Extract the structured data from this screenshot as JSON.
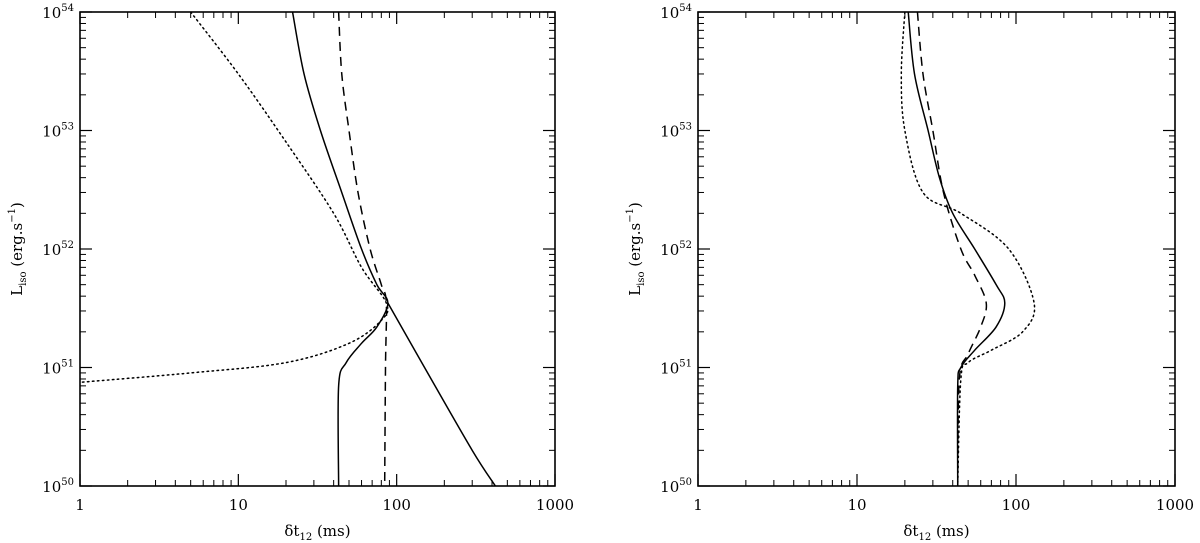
{
  "chart_data": [
    {
      "type": "line",
      "x_scale": "log",
      "y_scale": "log",
      "xlim": [
        1,
        1000
      ],
      "ylim": [
        1e+50,
        1e+54
      ],
      "x_ticks": [
        {
          "value": 1,
          "label": "1"
        },
        {
          "value": 10,
          "label": "10"
        },
        {
          "value": 100,
          "label": "100"
        },
        {
          "value": 1000,
          "label": "1000"
        }
      ],
      "y_ticks": [
        {
          "value": 1e+50,
          "base": "10",
          "exp": "50"
        },
        {
          "value": 1e+51,
          "base": "10",
          "exp": "51"
        },
        {
          "value": 1e+52,
          "base": "10",
          "exp": "52"
        },
        {
          "value": 1e+53,
          "base": "10",
          "exp": "53"
        },
        {
          "value": 1e+54,
          "base": "10",
          "exp": "54"
        }
      ],
      "xlabel": {
        "main": "δt",
        "sub": "12",
        "unit": " (ms)"
      },
      "ylabel": {
        "main": "L",
        "sub": "iso",
        "unit_pre": "  (erg.s",
        "unit_sup": "−1",
        "unit_post": ")"
      },
      "series": [
        {
          "style": "solid",
          "points": [
            [
              22,
              1e+54
            ],
            [
              26,
              3e+53
            ],
            [
              33,
              1e+53
            ],
            [
              45,
              3e+52
            ],
            [
              60,
              1e+52
            ],
            [
              75,
              5e+51
            ],
            [
              88,
              3.5e+51
            ],
            [
              75,
              2.2e+51
            ],
            [
              60,
              1.6e+51
            ],
            [
              48,
              1.1e+51
            ],
            [
              43,
              7e+50
            ],
            [
              43,
              1e+50
            ]
          ]
        },
        {
          "style": "solid",
          "points": [
            [
              88,
              3.5e+51
            ],
            [
              150,
              1e+51
            ],
            [
              300,
              2e+50
            ],
            [
              420,
              1e+50
            ]
          ]
        },
        {
          "style": "dashed",
          "points": [
            [
              43,
              1e+54
            ],
            [
              45,
              3e+53
            ],
            [
              50,
              1e+53
            ],
            [
              57,
              3e+52
            ],
            [
              68,
              1e+52
            ],
            [
              80,
              5e+51
            ],
            [
              86,
              3.5e+51
            ],
            [
              85,
              1e+51
            ],
            [
              84,
              1e+50
            ]
          ]
        },
        {
          "style": "dotted",
          "points": [
            [
              5,
              1e+54
            ],
            [
              10,
              3e+53
            ],
            [
              20,
              8e+52
            ],
            [
              40,
              2e+52
            ],
            [
              60,
              7e+51
            ],
            [
              86,
              3.5e+51
            ],
            [
              80,
              2.5e+51
            ],
            [
              50,
              1.6e+51
            ],
            [
              20,
              1.1e+51
            ],
            [
              5,
              9e+50
            ],
            [
              1,
              7.5e+50
            ]
          ]
        }
      ]
    },
    {
      "type": "line",
      "x_scale": "log",
      "y_scale": "log",
      "xlim": [
        1,
        1000
      ],
      "ylim": [
        1e+50,
        1e+54
      ],
      "x_ticks": [
        {
          "value": 1,
          "label": "1"
        },
        {
          "value": 10,
          "label": "10"
        },
        {
          "value": 100,
          "label": "100"
        },
        {
          "value": 1000,
          "label": "1000"
        }
      ],
      "y_ticks": [
        {
          "value": 1e+50,
          "base": "10",
          "exp": "50"
        },
        {
          "value": 1e+51,
          "base": "10",
          "exp": "51"
        },
        {
          "value": 1e+52,
          "base": "10",
          "exp": "52"
        },
        {
          "value": 1e+53,
          "base": "10",
          "exp": "53"
        },
        {
          "value": 1e+54,
          "base": "10",
          "exp": "54"
        }
      ],
      "xlabel": {
        "main": "δt",
        "sub": "12",
        "unit": " (ms)"
      },
      "ylabel": {
        "main": "L",
        "sub": "iso",
        "unit_pre": "  (erg.s",
        "unit_sup": "−1",
        "unit_post": ")"
      },
      "series": [
        {
          "style": "solid",
          "points": [
            [
              21,
              1e+54
            ],
            [
              23,
              3e+53
            ],
            [
              28,
              1e+53
            ],
            [
              33,
              4e+52
            ],
            [
              40,
              2e+52
            ],
            [
              55,
              1e+52
            ],
            [
              75,
              5e+51
            ],
            [
              85,
              3.5e+51
            ],
            [
              75,
              2.2e+51
            ],
            [
              55,
              1.4e+51
            ],
            [
              45,
              1e+51
            ],
            [
              43,
              7e+50
            ],
            [
              43,
              1e+50
            ]
          ]
        },
        {
          "style": "dashed",
          "points": [
            [
              24,
              1e+54
            ],
            [
              26,
              3e+53
            ],
            [
              30,
              1e+53
            ],
            [
              35,
              3e+52
            ],
            [
              45,
              1e+52
            ],
            [
              55,
              6e+51
            ],
            [
              65,
              3.5e+51
            ],
            [
              60,
              2.2e+51
            ],
            [
              50,
              1.3e+51
            ],
            [
              44,
              8e+50
            ],
            [
              43,
              1e+50
            ]
          ]
        },
        {
          "style": "dotted",
          "points": [
            [
              20,
              1e+54
            ],
            [
              19,
              3e+53
            ],
            [
              20,
              1e+53
            ],
            [
              26,
              3e+52
            ],
            [
              45,
              2e+52
            ],
            [
              90,
              1e+52
            ],
            [
              130,
              3.5e+51
            ],
            [
              110,
              2e+51
            ],
            [
              70,
              1.4e+51
            ],
            [
              50,
              1.1e+51
            ],
            [
              45,
              8e+50
            ],
            [
              43,
              1e+50
            ]
          ]
        }
      ]
    }
  ]
}
